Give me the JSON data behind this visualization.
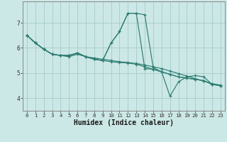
{
  "xlabel": "Humidex (Indice chaleur)",
  "background_color": "#cce8e6",
  "grid_color": "#aacfcc",
  "line_color": "#2e7d72",
  "x": [
    0,
    1,
    2,
    3,
    4,
    5,
    6,
    7,
    8,
    9,
    10,
    11,
    12,
    13,
    14,
    15,
    16,
    17,
    18,
    19,
    20,
    21,
    22,
    23
  ],
  "series": [
    [
      6.5,
      6.2,
      5.95,
      5.75,
      5.7,
      5.65,
      5.75,
      5.65,
      5.6,
      5.55,
      5.5,
      5.45,
      5.42,
      5.38,
      5.32,
      5.25,
      5.18,
      5.08,
      4.98,
      4.88,
      4.78,
      4.68,
      4.58,
      4.52
    ],
    [
      6.5,
      6.2,
      5.95,
      5.75,
      5.7,
      5.7,
      5.8,
      5.65,
      5.55,
      5.5,
      5.45,
      5.42,
      5.4,
      5.35,
      5.25,
      5.15,
      5.05,
      4.95,
      4.85,
      4.8,
      4.75,
      4.7,
      4.55,
      4.5
    ],
    [
      6.5,
      6.2,
      5.95,
      5.75,
      5.7,
      5.7,
      5.8,
      5.65,
      5.55,
      5.5,
      6.2,
      6.65,
      7.38,
      7.38,
      7.32,
      5.22,
      5.05,
      4.95,
      4.85,
      4.8,
      4.75,
      4.7,
      4.55,
      4.5
    ],
    [
      6.5,
      6.2,
      5.95,
      5.75,
      5.7,
      5.7,
      5.8,
      5.65,
      5.55,
      5.5,
      6.2,
      6.65,
      7.38,
      7.38,
      5.18,
      5.15,
      5.05,
      4.08,
      4.65,
      4.85,
      4.9,
      4.85,
      4.55,
      4.5
    ]
  ],
  "ylim": [
    3.5,
    7.85
  ],
  "yticks": [
    4,
    5,
    6,
    7
  ],
  "xlim": [
    -0.5,
    23.5
  ],
  "xticks": [
    0,
    1,
    2,
    3,
    4,
    5,
    6,
    7,
    8,
    9,
    10,
    11,
    12,
    13,
    14,
    15,
    16,
    17,
    18,
    19,
    20,
    21,
    22,
    23
  ],
  "xtick_labels": [
    "0",
    "1",
    "2",
    "3",
    "4",
    "5",
    "6",
    "7",
    "8",
    "9",
    "10",
    "11",
    "12",
    "13",
    "14",
    "15",
    "16",
    "17",
    "18",
    "19",
    "20",
    "21",
    "22",
    "23"
  ],
  "tick_fontsize": 5.2,
  "ylabel_fontsize": 6.5,
  "xlabel_fontsize": 7.0
}
